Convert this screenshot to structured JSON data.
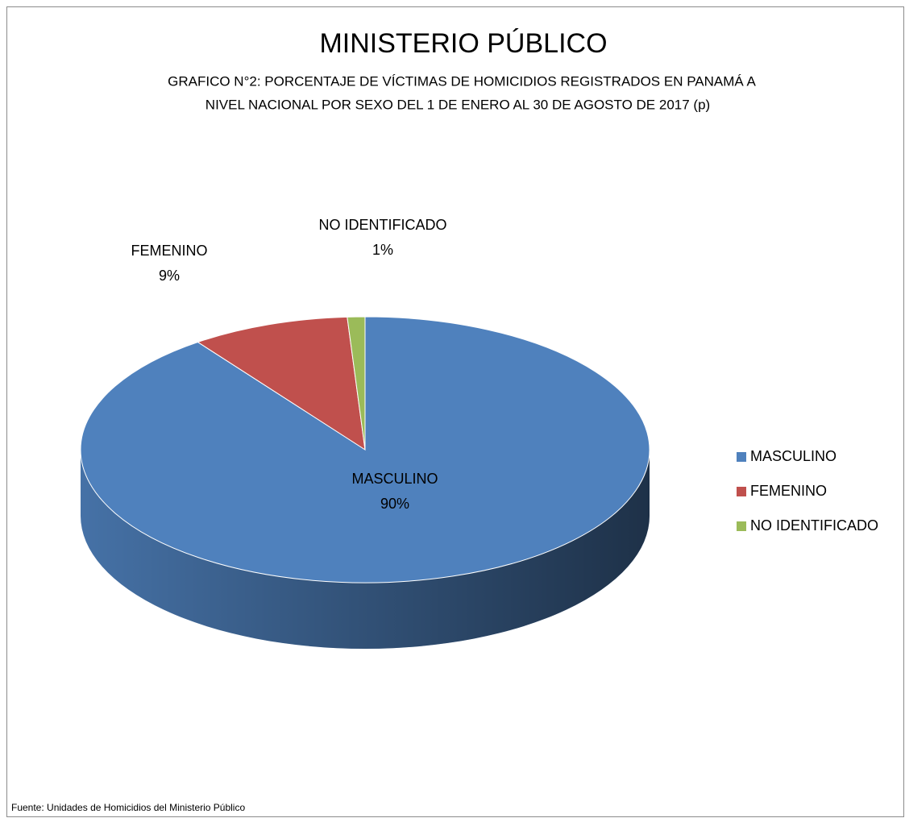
{
  "chart_data": {
    "type": "pie3d",
    "title": "MINISTERIO PÚBLICO",
    "subtitle": [
      "GRAFICO N°2: PORCENTAJE  DE VÍCTIMAS DE HOMICIDIOS REGISTRADOS EN PANAMÁ A",
      "NIVEL NACIONAL  POR SEXO  DEL 1   DE ENERO AL 30 DE AGOSTO DE  2017 (p)"
    ],
    "categories": [
      "MASCULINO",
      "FEMENINO",
      "NO IDENTIFICADO"
    ],
    "values": [
      90,
      9,
      1
    ],
    "value_labels": [
      "90%",
      "9%",
      "1%"
    ],
    "colors": [
      "#4f81bd",
      "#c0504d",
      "#9bbb59"
    ],
    "legend": "right",
    "source": "Fuente: Unidades de Homicidios del Ministerio Público"
  }
}
